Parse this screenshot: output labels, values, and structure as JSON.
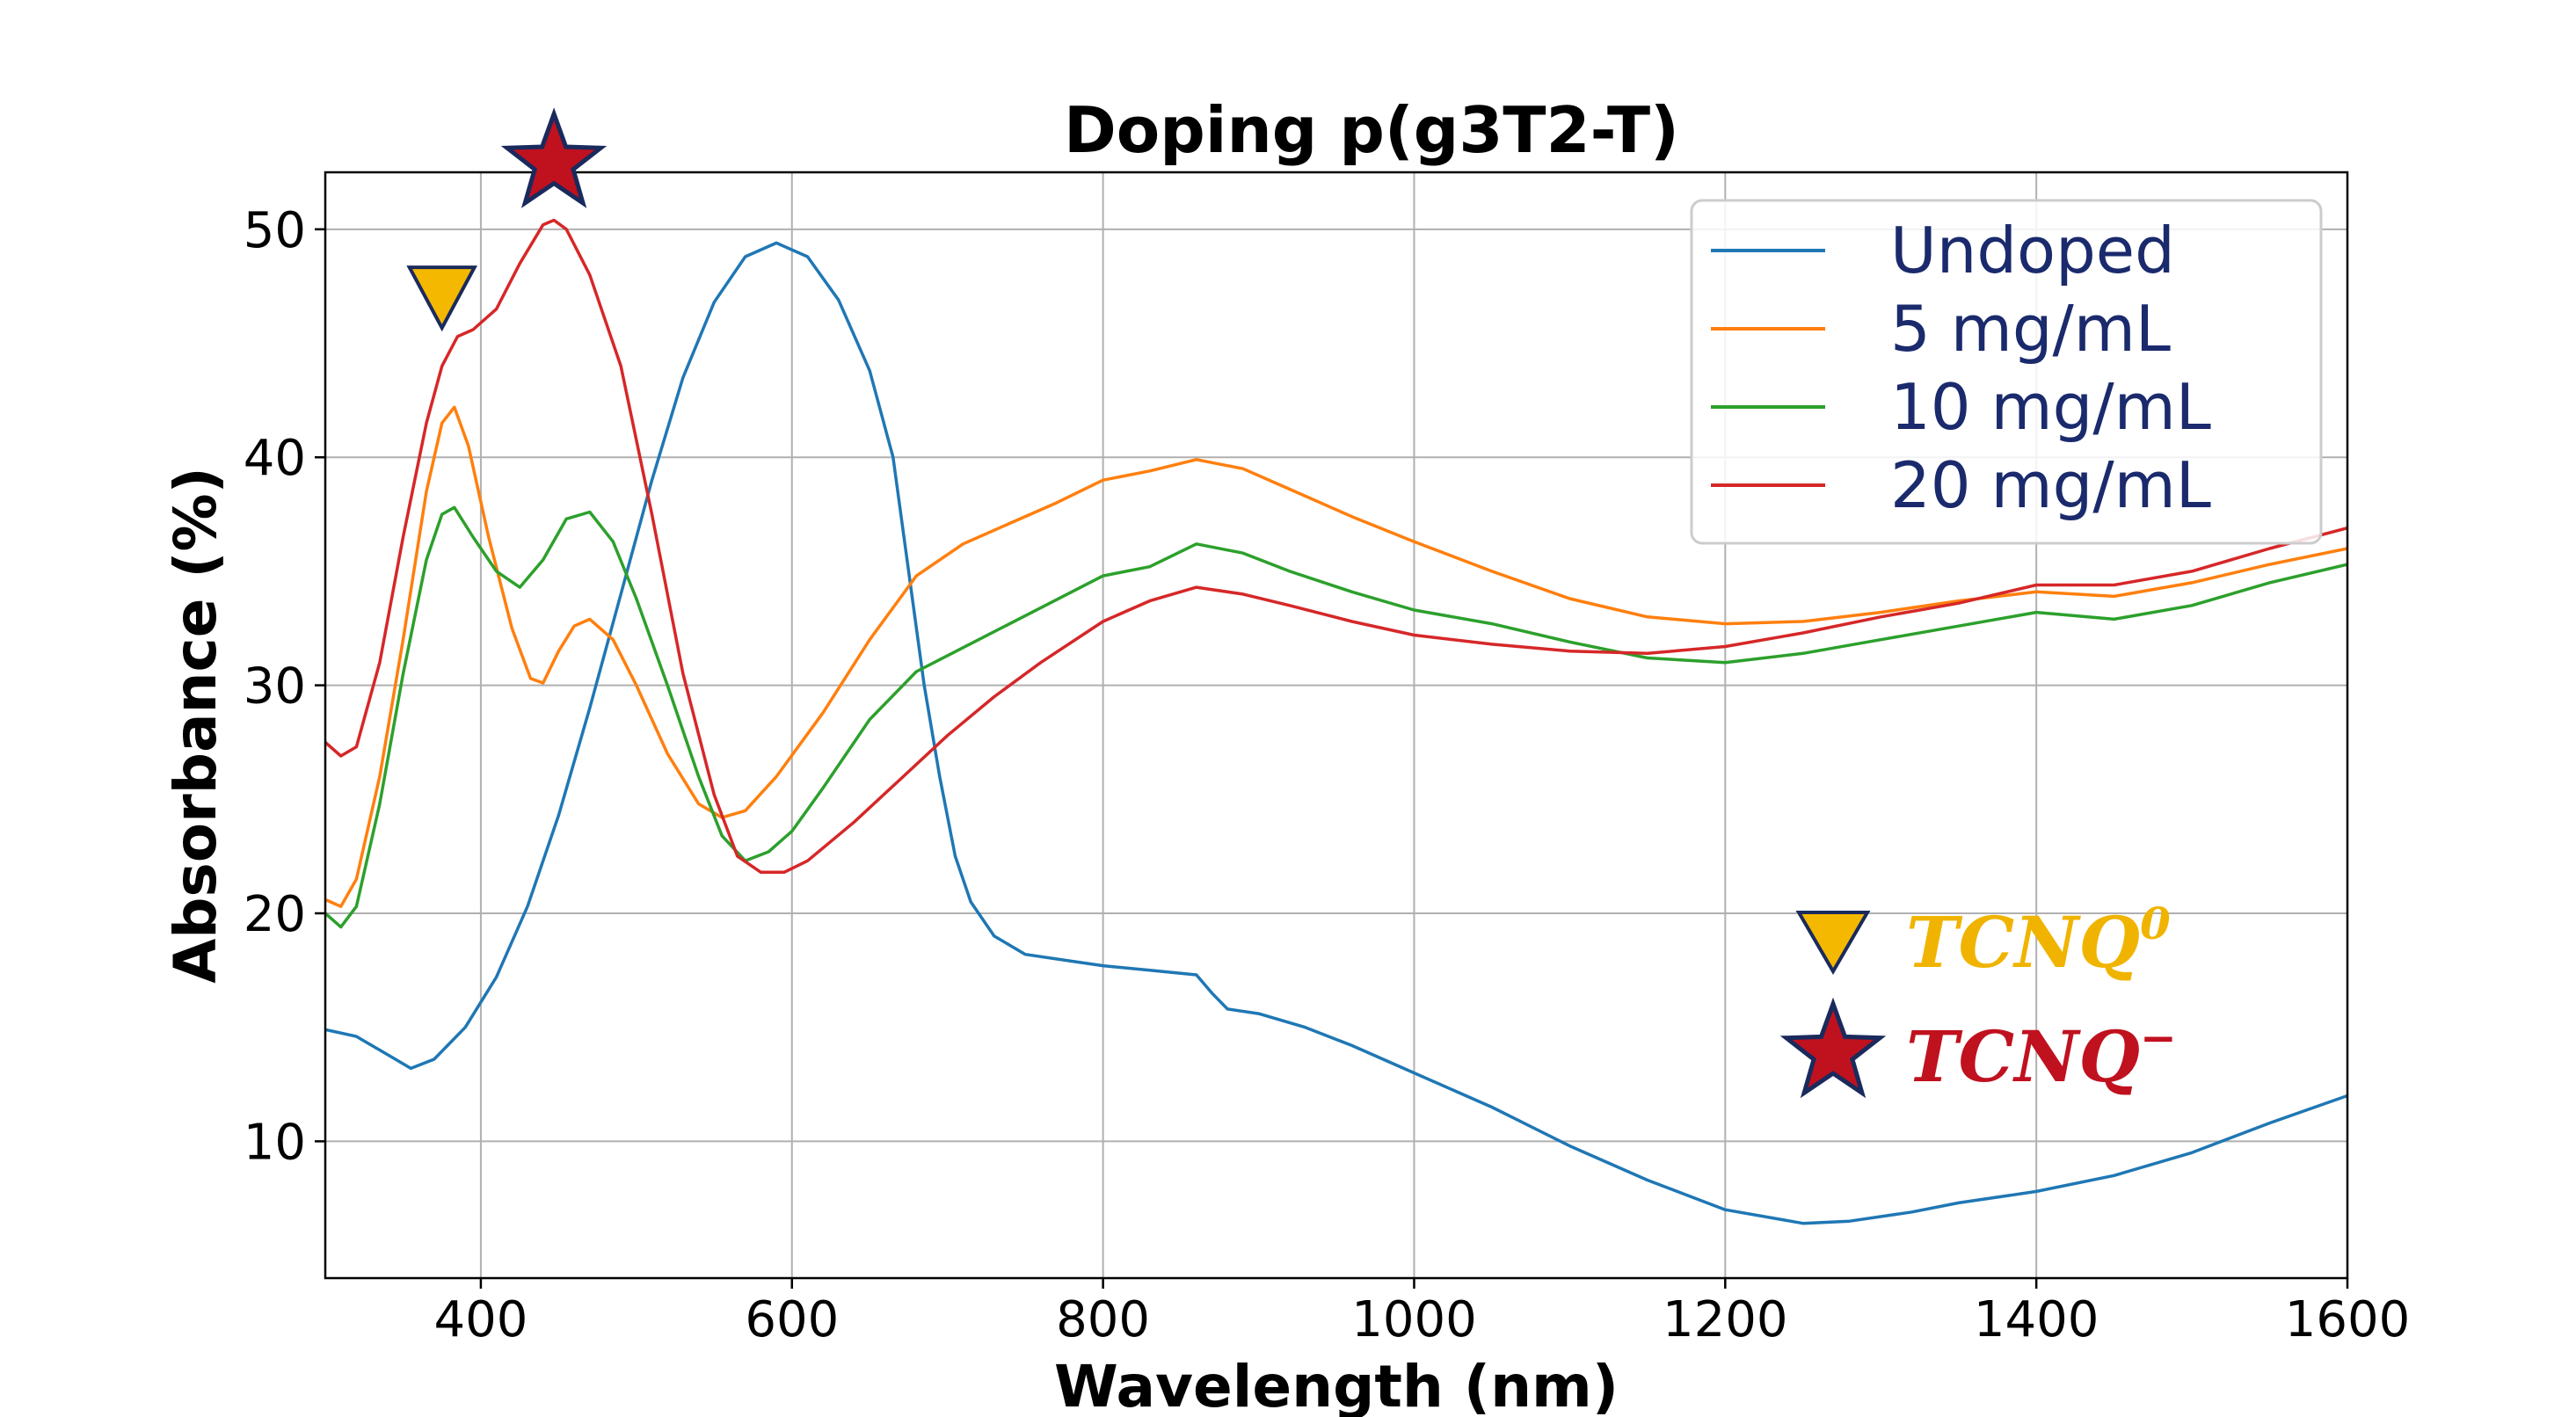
{
  "chart_data": {
    "type": "line",
    "title": "Doping p(g3T2-T)",
    "xlabel": "Wavelength (nm)",
    "ylabel": "Absorbance (%)",
    "xlim": [
      300,
      1600
    ],
    "ylim": [
      4,
      52.5
    ],
    "x_ticks": [
      400,
      600,
      800,
      1000,
      1200,
      1400,
      1600
    ],
    "y_ticks": [
      10,
      20,
      30,
      40,
      50
    ],
    "grid": true,
    "legend_position": "top-right",
    "series": [
      {
        "name": "Undoped",
        "color": "#1f77b4",
        "points": [
          [
            300,
            14.9
          ],
          [
            320,
            14.6
          ],
          [
            340,
            13.8
          ],
          [
            355,
            13.2
          ],
          [
            370,
            13.6
          ],
          [
            390,
            15.0
          ],
          [
            410,
            17.2
          ],
          [
            430,
            20.3
          ],
          [
            450,
            24.3
          ],
          [
            470,
            29.0
          ],
          [
            490,
            34.0
          ],
          [
            510,
            39.0
          ],
          [
            530,
            43.5
          ],
          [
            550,
            46.8
          ],
          [
            570,
            48.8
          ],
          [
            590,
            49.4
          ],
          [
            610,
            48.8
          ],
          [
            630,
            46.9
          ],
          [
            650,
            43.8
          ],
          [
            665,
            40.0
          ],
          [
            675,
            35.0
          ],
          [
            685,
            30.0
          ],
          [
            695,
            26.0
          ],
          [
            705,
            22.5
          ],
          [
            715,
            20.5
          ],
          [
            730,
            19.0
          ],
          [
            750,
            18.2
          ],
          [
            780,
            17.9
          ],
          [
            800,
            17.7
          ],
          [
            830,
            17.5
          ],
          [
            860,
            17.3
          ],
          [
            870,
            16.5
          ],
          [
            880,
            15.8
          ],
          [
            900,
            15.6
          ],
          [
            930,
            15.0
          ],
          [
            960,
            14.2
          ],
          [
            1000,
            13.0
          ],
          [
            1050,
            11.5
          ],
          [
            1100,
            9.8
          ],
          [
            1150,
            8.3
          ],
          [
            1200,
            7.0
          ],
          [
            1250,
            6.4
          ],
          [
            1280,
            6.5
          ],
          [
            1320,
            6.9
          ],
          [
            1350,
            7.3
          ],
          [
            1400,
            7.8
          ],
          [
            1450,
            8.5
          ],
          [
            1500,
            9.5
          ],
          [
            1550,
            10.8
          ],
          [
            1600,
            12.0
          ]
        ]
      },
      {
        "name": "5 mg/mL",
        "color": "#ff7f0e",
        "points": [
          [
            300,
            20.6
          ],
          [
            310,
            20.3
          ],
          [
            320,
            21.5
          ],
          [
            335,
            26.0
          ],
          [
            350,
            32.0
          ],
          [
            365,
            38.5
          ],
          [
            375,
            41.5
          ],
          [
            383,
            42.2
          ],
          [
            392,
            40.5
          ],
          [
            405,
            36.5
          ],
          [
            420,
            32.5
          ],
          [
            432,
            30.3
          ],
          [
            440,
            30.1
          ],
          [
            450,
            31.5
          ],
          [
            460,
            32.6
          ],
          [
            470,
            32.9
          ],
          [
            485,
            32.0
          ],
          [
            500,
            30.0
          ],
          [
            520,
            27.0
          ],
          [
            540,
            24.8
          ],
          [
            555,
            24.2
          ],
          [
            570,
            24.5
          ],
          [
            590,
            26.0
          ],
          [
            620,
            28.8
          ],
          [
            650,
            32.0
          ],
          [
            680,
            34.8
          ],
          [
            710,
            36.2
          ],
          [
            740,
            37.1
          ],
          [
            770,
            38.0
          ],
          [
            800,
            39.0
          ],
          [
            830,
            39.4
          ],
          [
            860,
            39.9
          ],
          [
            890,
            39.5
          ],
          [
            920,
            38.6
          ],
          [
            960,
            37.4
          ],
          [
            1000,
            36.3
          ],
          [
            1050,
            35.0
          ],
          [
            1100,
            33.8
          ],
          [
            1150,
            33.0
          ],
          [
            1200,
            32.7
          ],
          [
            1250,
            32.8
          ],
          [
            1300,
            33.2
          ],
          [
            1350,
            33.7
          ],
          [
            1400,
            34.1
          ],
          [
            1450,
            33.9
          ],
          [
            1500,
            34.5
          ],
          [
            1550,
            35.3
          ],
          [
            1600,
            36.0
          ]
        ]
      },
      {
        "name": "10 mg/mL",
        "color": "#2ca02c",
        "points": [
          [
            300,
            20.0
          ],
          [
            310,
            19.4
          ],
          [
            320,
            20.3
          ],
          [
            335,
            24.8
          ],
          [
            350,
            30.5
          ],
          [
            365,
            35.5
          ],
          [
            375,
            37.5
          ],
          [
            383,
            37.8
          ],
          [
            395,
            36.5
          ],
          [
            410,
            35.0
          ],
          [
            425,
            34.3
          ],
          [
            440,
            35.5
          ],
          [
            455,
            37.3
          ],
          [
            470,
            37.6
          ],
          [
            485,
            36.3
          ],
          [
            500,
            33.8
          ],
          [
            520,
            30.0
          ],
          [
            540,
            26.0
          ],
          [
            555,
            23.4
          ],
          [
            570,
            22.3
          ],
          [
            585,
            22.7
          ],
          [
            600,
            23.6
          ],
          [
            620,
            25.5
          ],
          [
            650,
            28.5
          ],
          [
            680,
            30.6
          ],
          [
            720,
            32.0
          ],
          [
            760,
            33.4
          ],
          [
            800,
            34.8
          ],
          [
            830,
            35.2
          ],
          [
            860,
            36.2
          ],
          [
            890,
            35.8
          ],
          [
            920,
            35.0
          ],
          [
            960,
            34.1
          ],
          [
            1000,
            33.3
          ],
          [
            1050,
            32.7
          ],
          [
            1100,
            31.9
          ],
          [
            1150,
            31.2
          ],
          [
            1200,
            31.0
          ],
          [
            1250,
            31.4
          ],
          [
            1300,
            32.0
          ],
          [
            1350,
            32.6
          ],
          [
            1400,
            33.2
          ],
          [
            1450,
            32.9
          ],
          [
            1500,
            33.5
          ],
          [
            1550,
            34.5
          ],
          [
            1600,
            35.3
          ]
        ]
      },
      {
        "name": "20 mg/mL",
        "color": "#d62728",
        "points": [
          [
            300,
            27.5
          ],
          [
            310,
            26.9
          ],
          [
            320,
            27.3
          ],
          [
            335,
            31.0
          ],
          [
            350,
            36.5
          ],
          [
            365,
            41.5
          ],
          [
            375,
            44.0
          ],
          [
            385,
            45.3
          ],
          [
            395,
            45.6
          ],
          [
            410,
            46.5
          ],
          [
            425,
            48.5
          ],
          [
            440,
            50.2
          ],
          [
            447,
            50.4
          ],
          [
            455,
            50.0
          ],
          [
            470,
            48.0
          ],
          [
            490,
            44.0
          ],
          [
            510,
            37.5
          ],
          [
            530,
            30.5
          ],
          [
            550,
            25.2
          ],
          [
            565,
            22.5
          ],
          [
            580,
            21.8
          ],
          [
            595,
            21.8
          ],
          [
            610,
            22.3
          ],
          [
            640,
            24.0
          ],
          [
            670,
            25.9
          ],
          [
            700,
            27.8
          ],
          [
            730,
            29.5
          ],
          [
            760,
            31.0
          ],
          [
            800,
            32.8
          ],
          [
            830,
            33.7
          ],
          [
            860,
            34.3
          ],
          [
            890,
            34.0
          ],
          [
            920,
            33.5
          ],
          [
            960,
            32.8
          ],
          [
            1000,
            32.2
          ],
          [
            1050,
            31.8
          ],
          [
            1100,
            31.5
          ],
          [
            1150,
            31.4
          ],
          [
            1200,
            31.7
          ],
          [
            1250,
            32.3
          ],
          [
            1300,
            33.0
          ],
          [
            1350,
            33.6
          ],
          [
            1400,
            34.4
          ],
          [
            1450,
            34.4
          ],
          [
            1500,
            35.0
          ],
          [
            1550,
            36.0
          ],
          [
            1600,
            36.9
          ]
        ]
      }
    ],
    "markers": [
      {
        "shape": "triangle",
        "x": 375,
        "y": 47.1,
        "fill": "#f5b800"
      },
      {
        "shape": "star",
        "x": 447,
        "y": 52.9,
        "fill": "#c0111f"
      }
    ]
  },
  "annotations": {
    "tcnq0": {
      "base": "TCNQ",
      "sup": "0",
      "color": "#f0b400",
      "icon": "triangle-down-icon"
    },
    "tcnq_minus": {
      "base": "TCNQ",
      "sup": "−",
      "color": "#c0111f",
      "icon": "star-icon"
    }
  }
}
